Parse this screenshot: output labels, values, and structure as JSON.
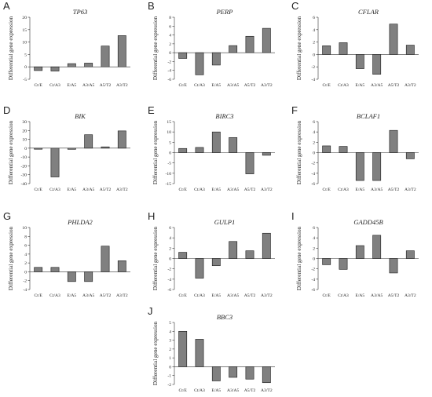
{
  "chart_data": [
    {
      "letter": "A",
      "type": "bar",
      "title": "TP63",
      "ylabel": "Differential gene expression",
      "categories": [
        "Ct/E",
        "Ct/A3",
        "E/A5",
        "A3/A5",
        "A5/T2",
        "A3/T2"
      ],
      "values": [
        -1.5,
        -1.7,
        1.3,
        1.5,
        8.4,
        12.6
      ],
      "ylim": [
        -5,
        20
      ],
      "yticks": [
        -5,
        0,
        5,
        10,
        15,
        20
      ]
    },
    {
      "letter": "B",
      "type": "bar",
      "title": "PERP",
      "ylabel": "Differential gene expression",
      "categories": [
        "Ct/E",
        "Ct/A3",
        "E/A5",
        "A3/A5",
        "A5/T2",
        "A3/T2"
      ],
      "values": [
        -1.3,
        -5.0,
        -2.8,
        1.6,
        3.7,
        5.5
      ],
      "ylim": [
        -6,
        8
      ],
      "yticks": [
        -6,
        -4,
        -2,
        0,
        2,
        4,
        6,
        8
      ]
    },
    {
      "letter": "C",
      "type": "bar",
      "title": "CFLAR",
      "ylabel": "Differential gene expression",
      "categories": [
        "Ct/E",
        "Ct/A3",
        "E/A5",
        "A3/A5",
        "A5/T2",
        "A3/T2"
      ],
      "values": [
        1.4,
        1.9,
        -2.3,
        -3.2,
        4.9,
        1.5
      ],
      "ylim": [
        -4,
        6
      ],
      "yticks": [
        -4,
        -2,
        0,
        2,
        4,
        6
      ]
    },
    {
      "letter": "D",
      "type": "bar",
      "title": "BIK",
      "ylabel": "Differential gene expression",
      "categories": [
        "Ct/E",
        "Ct/A3",
        "E/A5",
        "A3/A5",
        "A5/T2",
        "A3/T2"
      ],
      "values": [
        -1.2,
        -32.5,
        -1.3,
        15.2,
        1.5,
        19.5
      ],
      "ylim": [
        -40,
        30
      ],
      "yticks": [
        -40,
        -30,
        -20,
        -10,
        0,
        10,
        20,
        30
      ]
    },
    {
      "letter": "E",
      "type": "bar",
      "title": "BIRC3",
      "ylabel": "Differential gene expression",
      "categories": [
        "Ct/E",
        "Ct/A3",
        "E/A5",
        "A3/A5",
        "A5/T2",
        "A3/T2"
      ],
      "values": [
        2.0,
        2.5,
        10.0,
        7.3,
        -10.3,
        -1.3
      ],
      "ylim": [
        -15,
        15
      ],
      "yticks": [
        -15,
        -10,
        -5,
        0,
        5,
        10,
        15
      ]
    },
    {
      "letter": "F",
      "type": "bar",
      "title": "BCLAF1",
      "ylabel": "Differential gene expression",
      "categories": [
        "Ct/E",
        "Ct/A3",
        "E/A5",
        "A3/A5",
        "A5/T2",
        "A3/T2"
      ],
      "values": [
        1.3,
        1.2,
        -5.4,
        -5.4,
        4.3,
        -1.2
      ],
      "ylim": [
        -6,
        6
      ],
      "yticks": [
        -6,
        -4,
        -2,
        0,
        2,
        4,
        6
      ]
    },
    {
      "letter": "G",
      "type": "bar",
      "title": "PHLDA2",
      "ylabel": "Differential gene expression",
      "categories": [
        "Ct/E",
        "Ct/A3",
        "E/A5",
        "A3/A5",
        "A5/T2",
        "A3/T2"
      ],
      "values": [
        1.0,
        1.0,
        -2.2,
        -2.2,
        5.8,
        2.5
      ],
      "ylim": [
        -4,
        10
      ],
      "yticks": [
        -4,
        -2,
        0,
        2,
        4,
        6,
        8,
        10
      ]
    },
    {
      "letter": "H",
      "type": "bar",
      "title": "GULP1",
      "ylabel": "Differential gene expression",
      "categories": [
        "Ct/E",
        "Ct/A3",
        "E/A5",
        "A3/A5",
        "A5/T2",
        "A3/T2"
      ],
      "values": [
        1.2,
        -3.8,
        -1.4,
        3.3,
        1.5,
        4.9
      ],
      "ylim": [
        -6,
        6
      ],
      "yticks": [
        -6,
        -4,
        -2,
        0,
        2,
        4,
        6
      ]
    },
    {
      "letter": "I",
      "type": "bar",
      "title": "GADD45B",
      "ylabel": "Differential gene expression",
      "categories": [
        "Ct/E",
        "Ct/A3",
        "E/A5",
        "A3/A5",
        "A5/T2",
        "A3/T2"
      ],
      "values": [
        -1.2,
        -2.1,
        2.5,
        4.5,
        -2.8,
        1.5
      ],
      "ylim": [
        -6,
        6
      ],
      "yticks": [
        -6,
        -4,
        -2,
        0,
        2,
        4,
        6
      ]
    },
    {
      "letter": "J",
      "type": "bar",
      "title": "BBC3",
      "ylabel": "Differential gene expression",
      "categories": [
        "Ct/E",
        "Ct/A3",
        "E/A5",
        "A3/A5",
        "A5/T2",
        "A3/T2"
      ],
      "values": [
        4.0,
        3.1,
        -1.6,
        -1.2,
        -1.4,
        -1.8
      ],
      "ylim": [
        -2,
        5
      ],
      "yticks": [
        -2,
        -1,
        0,
        1,
        2,
        3,
        4,
        5
      ]
    }
  ]
}
